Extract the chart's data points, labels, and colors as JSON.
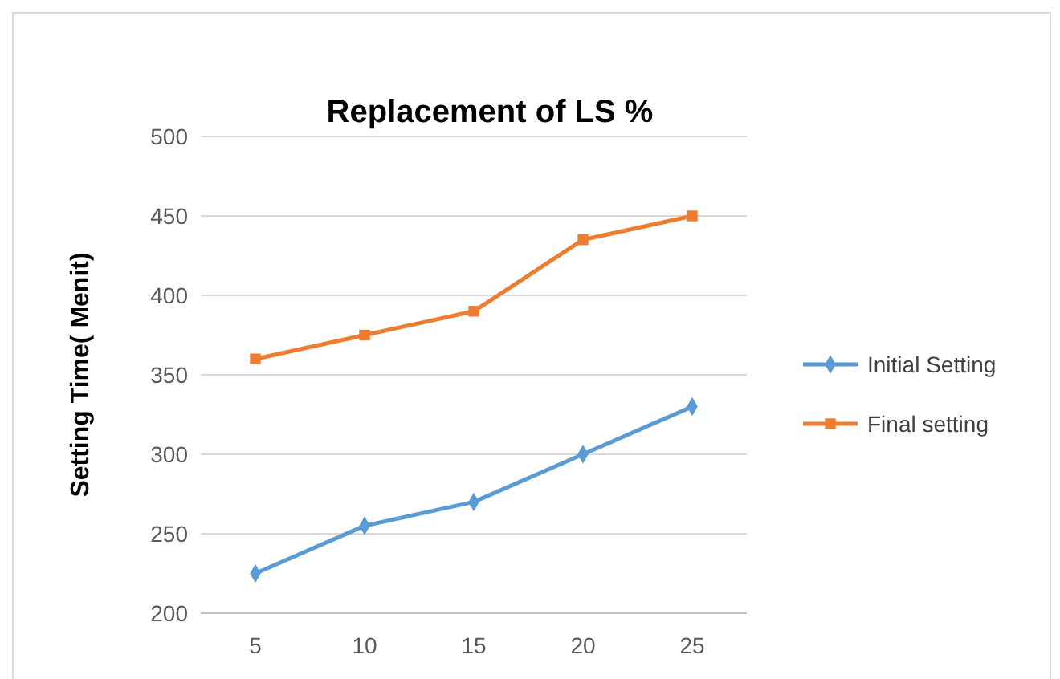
{
  "chart_data": {
    "type": "line",
    "title": "Replacement of LS %",
    "ylabel": "Setting Time( Menit)",
    "categories": [
      "5",
      "10",
      "15",
      "20",
      "25"
    ],
    "series": [
      {
        "name": "Initial Setting",
        "color": "#5b9bd5",
        "marker": "diamond",
        "values": [
          225,
          255,
          270,
          300,
          330
        ]
      },
      {
        "name": "Final setting",
        "color": "#ed7d31",
        "marker": "square",
        "values": [
          360,
          375,
          390,
          435,
          450
        ]
      }
    ],
    "ylim": [
      200,
      500
    ],
    "yticks": [
      200,
      250,
      300,
      350,
      400,
      450,
      500
    ],
    "grid": "y",
    "legend": "right"
  }
}
